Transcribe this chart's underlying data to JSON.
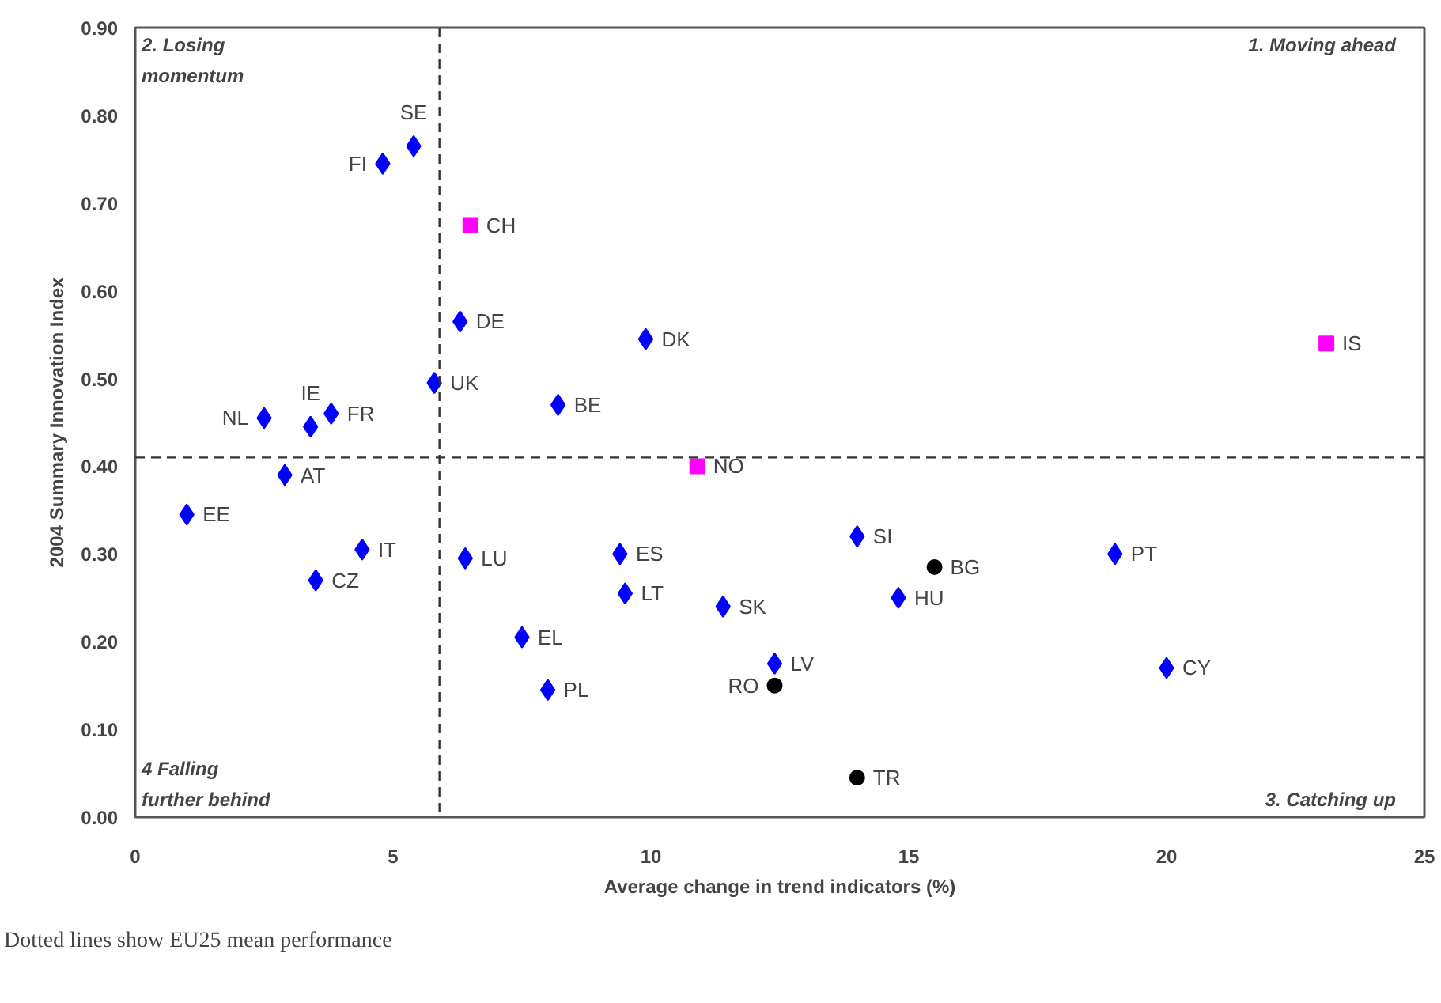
{
  "chart_data": {
    "type": "scatter",
    "xlabel": "Average change in trend indicators (%)",
    "ylabel": "2004 Summary Innovation Index",
    "xlim": [
      0,
      25
    ],
    "xticks": [
      0,
      5,
      10,
      15,
      20,
      25
    ],
    "ylim": [
      0,
      0.9
    ],
    "yticks": [
      {
        "value": 0,
        "label": "0.00"
      },
      {
        "value": 0.1,
        "label": "0.10"
      },
      {
        "value": 0.2,
        "label": "0.20"
      },
      {
        "value": 0.3,
        "label": "0.30"
      },
      {
        "value": 0.4,
        "label": "0.40"
      },
      {
        "value": 0.5,
        "label": "0.50"
      },
      {
        "value": 0.6,
        "label": "0.60"
      },
      {
        "value": 0.7,
        "label": "0.70"
      },
      {
        "value": 0.8,
        "label": "0.80"
      },
      {
        "value": 0.9,
        "label": "0.90"
      }
    ],
    "grid": false,
    "series": [
      {
        "color": "#0000ff",
        "marker": "diamond",
        "x": [
          5.4,
          4.8,
          6.3,
          9.9,
          5.8,
          8.2,
          2.5,
          3.4,
          3.8,
          2.9,
          1.0,
          14.0,
          4.4,
          9.4,
          19.0,
          6.4,
          3.5,
          9.5,
          14.8,
          11.4,
          7.5,
          12.4,
          20.0,
          8.0
        ],
        "values": [
          0.765,
          0.745,
          0.565,
          0.545,
          0.495,
          0.47,
          0.455,
          0.445,
          0.46,
          0.39,
          0.345,
          0.32,
          0.305,
          0.3,
          0.3,
          0.295,
          0.27,
          0.255,
          0.25,
          0.24,
          0.205,
          0.175,
          0.17,
          0.145
        ]
      },
      {
        "color": "#ff00ff",
        "marker": "square",
        "x": [
          6.5,
          23.1,
          10.9
        ],
        "values": [
          0.675,
          0.54,
          0.4
        ]
      },
      {
        "color": "#000000",
        "marker": "circle",
        "x": [
          15.5,
          12.4,
          14.0
        ],
        "values": [
          0.285,
          0.15,
          0.045
        ]
      }
    ],
    "ref_lines": [
      {
        "axis": "x",
        "value": 5.9,
        "color": "#333333",
        "line_style": "dashed"
      },
      {
        "axis": "y",
        "value": 0.41,
        "color": "#333333",
        "line_style": "dashed"
      }
    ],
    "annotations": [
      "2. Losing\nmomentum",
      "1. Moving ahead",
      "3. Catching up",
      "4 Falling\nfurther behind",
      "Dotted lines show EU25 mean performance",
      {
        "text": "SE",
        "x": 5.4,
        "y": 0.765
      },
      {
        "text": "FI",
        "x": 4.8,
        "y": 0.745
      },
      {
        "text": "DE",
        "x": 6.3,
        "y": 0.565
      },
      {
        "text": "DK",
        "x": 9.9,
        "y": 0.545
      },
      {
        "text": "UK",
        "x": 5.8,
        "y": 0.495
      },
      {
        "text": "BE",
        "x": 8.2,
        "y": 0.47
      },
      {
        "text": "NL",
        "x": 2.5,
        "y": 0.455
      },
      {
        "text": "IE",
        "x": 3.4,
        "y": 0.445
      },
      {
        "text": "FR",
        "x": 3.8,
        "y": 0.46
      },
      {
        "text": "AT",
        "x": 2.9,
        "y": 0.39
      },
      {
        "text": "EE",
        "x": 1.0,
        "y": 0.345
      },
      {
        "text": "SI",
        "x": 14.0,
        "y": 0.32
      },
      {
        "text": "IT",
        "x": 4.4,
        "y": 0.305
      },
      {
        "text": "ES",
        "x": 9.4,
        "y": 0.3
      },
      {
        "text": "PT",
        "x": 19.0,
        "y": 0.3
      },
      {
        "text": "LU",
        "x": 6.4,
        "y": 0.295
      },
      {
        "text": "CZ",
        "x": 3.5,
        "y": 0.27
      },
      {
        "text": "LT",
        "x": 9.5,
        "y": 0.255
      },
      {
        "text": "HU",
        "x": 14.8,
        "y": 0.25
      },
      {
        "text": "SK",
        "x": 11.4,
        "y": 0.24
      },
      {
        "text": "EL",
        "x": 7.5,
        "y": 0.205
      },
      {
        "text": "LV",
        "x": 12.4,
        "y": 0.175
      },
      {
        "text": "CY",
        "x": 20.0,
        "y": 0.17
      },
      {
        "text": "PL",
        "x": 8.0,
        "y": 0.145
      },
      {
        "text": "CH",
        "x": 6.5,
        "y": 0.675
      },
      {
        "text": "IS",
        "x": 23.1,
        "y": 0.54
      },
      {
        "text": "NO",
        "x": 10.9,
        "y": 0.4
      },
      {
        "text": "BG",
        "x": 15.5,
        "y": 0.285
      },
      {
        "text": "RO",
        "x": 12.4,
        "y": 0.15
      },
      {
        "text": "TR",
        "x": 14.0,
        "y": 0.045
      }
    ]
  }
}
